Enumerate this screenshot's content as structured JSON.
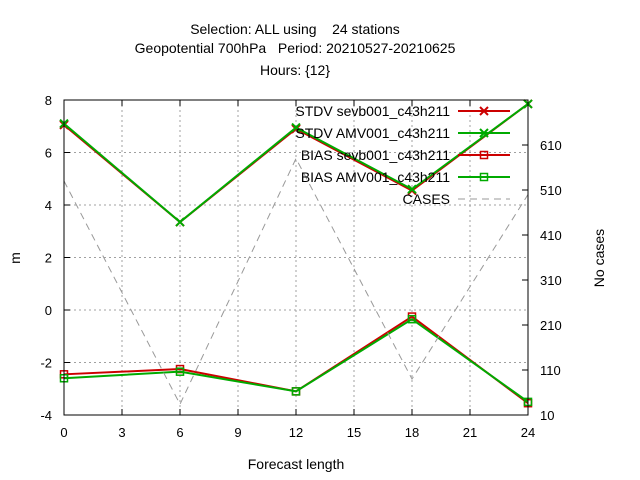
{
  "chart_data": {
    "type": "line",
    "title": [
      "Selection: ALL using    24 stations",
      "Geopotential 700hPa   Period: 20210527-20210625",
      "Hours: {12}"
    ],
    "xlabel": "Forecast length",
    "ylabel": "m",
    "y2label": "No cases",
    "xlim": [
      0,
      24
    ],
    "ylim": [
      -4,
      8
    ],
    "y2lim": [
      10,
      710
    ],
    "xticks": [
      "0",
      "3",
      "6",
      "9",
      "12",
      "15",
      "18",
      "21",
      "24"
    ],
    "yticks": [
      "-4",
      "-2",
      "0",
      "2",
      "4",
      "6",
      "8"
    ],
    "y2ticks": [
      "10",
      "110",
      "210",
      "310",
      "410",
      "510",
      "610"
    ],
    "grid": true,
    "legend_position": "top-right",
    "x": [
      0,
      6,
      12,
      18,
      24
    ],
    "series": [
      {
        "name": "STDV sevb001_c43h211",
        "axis": "y",
        "color": "#cc0000",
        "marker": "x",
        "style": "solid",
        "values": [
          7.05,
          3.35,
          6.9,
          4.55,
          7.85
        ]
      },
      {
        "name": "STDV AMV001_c43h211",
        "axis": "y",
        "color": "#00aa00",
        "marker": "x",
        "style": "solid",
        "values": [
          7.1,
          3.35,
          6.95,
          4.6,
          7.85
        ]
      },
      {
        "name": "BIAS sevb001_c43h211",
        "axis": "y",
        "color": "#cc0000",
        "marker": "square",
        "style": "solid",
        "values": [
          -2.45,
          -2.25,
          -3.1,
          -0.25,
          -3.55
        ]
      },
      {
        "name": "BIAS AMV001_c43h211",
        "axis": "y",
        "color": "#00aa00",
        "marker": "square",
        "style": "solid",
        "values": [
          -2.6,
          -2.35,
          -3.1,
          -0.35,
          -3.5
        ]
      },
      {
        "name": "CASES",
        "axis": "y2",
        "color": "#999999",
        "marker": "none",
        "style": "dashed",
        "values": [
          530,
          34,
          580,
          90,
          500
        ]
      }
    ]
  }
}
